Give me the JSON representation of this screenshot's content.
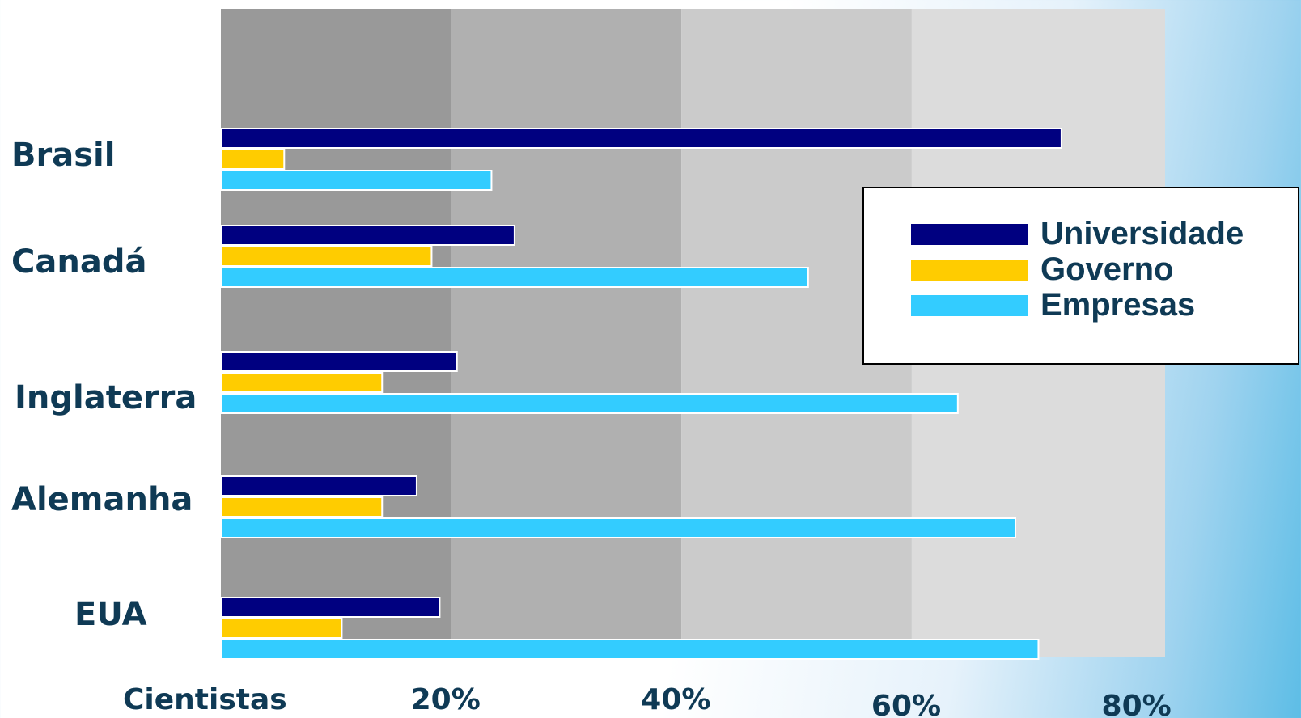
{
  "chart_data": {
    "type": "bar",
    "orientation": "horizontal",
    "categories": [
      "Brasil",
      "Canadá",
      "Inglaterra",
      "Alemanha",
      "EUA"
    ],
    "series": [
      {
        "name": "Universidade",
        "color": "#000080",
        "values": [
          73,
          25.5,
          20.5,
          17,
          19
        ]
      },
      {
        "name": "Governo",
        "color": "#ffcc00",
        "values": [
          5.5,
          18.3,
          14,
          14,
          10.5
        ]
      },
      {
        "name": "Empresas",
        "color": "#33ccff",
        "values": [
          23.5,
          51,
          64,
          69,
          71
        ]
      }
    ],
    "x_tick_labels": [
      "20%",
      "40%",
      "60%",
      "80%"
    ],
    "x_ticks": [
      20,
      40,
      60,
      80
    ],
    "xlim": [
      0,
      80
    ],
    "xlabel": "Cientistas",
    "title": "",
    "grid": "alternating bands",
    "band_colors": [
      "#999999",
      "#b0b0b0",
      "#cbcbcb",
      "#dcdcdc"
    ],
    "legend_position": "right"
  }
}
